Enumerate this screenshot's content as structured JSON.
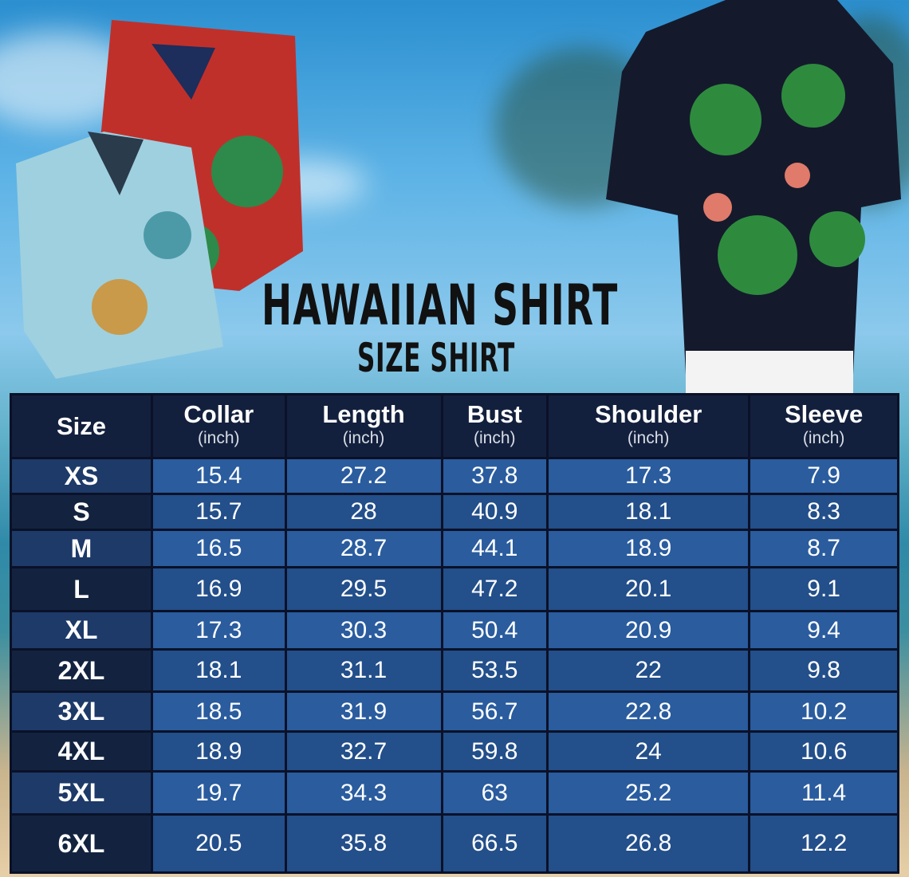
{
  "title": "HAWAIIAN SHIRT",
  "subtitle": "SIZE SHIRT",
  "table": {
    "headers": [
      {
        "label": "Size",
        "unit": ""
      },
      {
        "label": "Collar",
        "unit": "(inch)"
      },
      {
        "label": "Length",
        "unit": "(inch)"
      },
      {
        "label": "Bust",
        "unit": "(inch)"
      },
      {
        "label": "Shoulder",
        "unit": "(inch)"
      },
      {
        "label": "Sleeve",
        "unit": "(inch)"
      }
    ],
    "rows": [
      [
        "XS",
        "15.4",
        "27.2",
        "37.8",
        "17.3",
        "7.9"
      ],
      [
        "S",
        "15.7",
        "28",
        "40.9",
        "18.1",
        "8.3"
      ],
      [
        "M",
        "16.5",
        "28.7",
        "44.1",
        "18.9",
        "8.7"
      ],
      [
        "L",
        "16.9",
        "29.5",
        "47.2",
        "20.1",
        "9.1"
      ],
      [
        "XL",
        "17.3",
        "30.3",
        "50.4",
        "20.9",
        "9.4"
      ],
      [
        "2XL",
        "18.1",
        "31.1",
        "53.5",
        "22",
        "9.8"
      ],
      [
        "3XL",
        "18.5",
        "31.9",
        "56.7",
        "22.8",
        "10.2"
      ],
      [
        "4XL",
        "18.9",
        "32.7",
        "59.8",
        "24",
        "10.6"
      ],
      [
        "5XL",
        "19.7",
        "34.3",
        "63",
        "25.2",
        "11.4"
      ],
      [
        "6XL",
        "20.5",
        "35.8",
        "66.5",
        "26.8",
        "12.2"
      ]
    ]
  },
  "colors": {
    "header": "#13203d",
    "cell_light": "#2a5c9e",
    "cell_dark": "#234f8a"
  }
}
